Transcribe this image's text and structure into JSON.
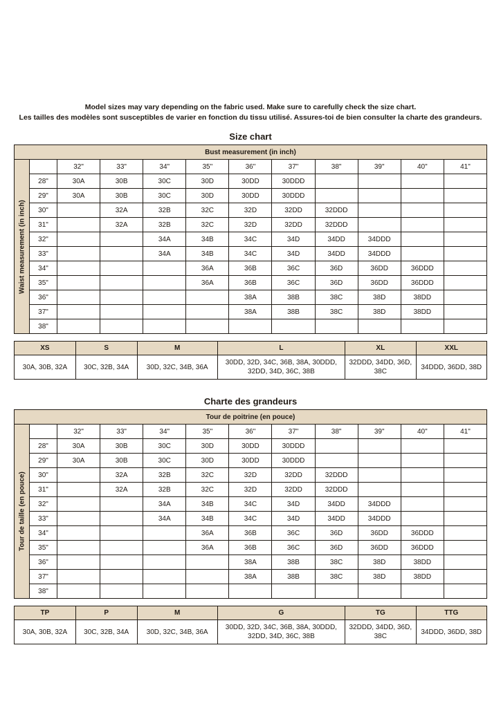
{
  "intro": {
    "line1": "Model sizes may vary depending on the fabric used. Make sure to carefully check the size chart.",
    "line2": "Les tailles des modèles sont susceptibles de varier en fonction du tissu utilisé. Assures-toi de bien consulter la charte des grandeurs."
  },
  "colors": {
    "band_bg": "#e6d9c3",
    "border": "#201a14",
    "text": "#201a14",
    "page_bg": "#ffffff"
  },
  "chart_en": {
    "title": "Size chart",
    "top_header": "Bust measurement (in inch)",
    "side_header": "Waist measurement (in inch)",
    "bust_cols": [
      "32\"",
      "33\"",
      "34\"",
      "35\"",
      "36\"",
      "37\"",
      "38\"",
      "39\"",
      "40\"",
      "41\""
    ],
    "rows": [
      {
        "h": "28\"",
        "c": [
          "30A",
          "30B",
          "30C",
          "30D",
          "30DD",
          "30DDD",
          "",
          "",
          "",
          ""
        ]
      },
      {
        "h": "29\"",
        "c": [
          "30A",
          "30B",
          "30C",
          "30D",
          "30DD",
          "30DDD",
          "",
          "",
          "",
          ""
        ]
      },
      {
        "h": "30\"",
        "c": [
          "",
          "32A",
          "32B",
          "32C",
          "32D",
          "32DD",
          "32DDD",
          "",
          "",
          ""
        ]
      },
      {
        "h": "31\"",
        "c": [
          "",
          "32A",
          "32B",
          "32C",
          "32D",
          "32DD",
          "32DDD",
          "",
          "",
          ""
        ]
      },
      {
        "h": "32\"",
        "c": [
          "",
          "",
          "34A",
          "34B",
          "34C",
          "34D",
          "34DD",
          "34DDD",
          "",
          ""
        ]
      },
      {
        "h": "33\"",
        "c": [
          "",
          "",
          "34A",
          "34B",
          "34C",
          "34D",
          "34DD",
          "34DDD",
          "",
          ""
        ]
      },
      {
        "h": "34\"",
        "c": [
          "",
          "",
          "",
          "36A",
          "36B",
          "36C",
          "36D",
          "36DD",
          "36DDD",
          ""
        ]
      },
      {
        "h": "35\"",
        "c": [
          "",
          "",
          "",
          "36A",
          "36B",
          "36C",
          "36D",
          "36DD",
          "36DDD",
          ""
        ]
      },
      {
        "h": "36\"",
        "c": [
          "",
          "",
          "",
          "",
          "38A",
          "38B",
          "38C",
          "38D",
          "38DD",
          ""
        ]
      },
      {
        "h": "37\"",
        "c": [
          "",
          "",
          "",
          "",
          "38A",
          "38B",
          "38C",
          "38D",
          "38DD",
          ""
        ]
      },
      {
        "h": "38\"",
        "c": [
          "",
          "",
          "",
          "",
          "",
          "",
          "",
          "",
          "",
          ""
        ]
      }
    ],
    "sizecat": {
      "headers": [
        "XS",
        "S",
        "M",
        "L",
        "XL",
        "XXL"
      ],
      "values": [
        "30A, 30B, 32A",
        "30C, 32B, 34A",
        "30D, 32C, 34B, 36A",
        "30DD, 32D, 34C, 36B, 38A, 30DDD, 32DD, 34D, 36C, 38B",
        "32DDD, 34DD, 36D, 38C",
        "34DDD, 36DD, 38D"
      ]
    }
  },
  "chart_fr": {
    "title": "Charte des grandeurs",
    "top_header": "Tour de poitrine (en pouce)",
    "side_header": "Tour de taille (en pouce)",
    "bust_cols": [
      "32\"",
      "33\"",
      "34\"",
      "35\"",
      "36\"",
      "37\"",
      "38\"",
      "39\"",
      "40\"",
      "41\""
    ],
    "rows": [
      {
        "h": "28\"",
        "c": [
          "30A",
          "30B",
          "30C",
          "30D",
          "30DD",
          "30DDD",
          "",
          "",
          "",
          ""
        ]
      },
      {
        "h": "29\"",
        "c": [
          "30A",
          "30B",
          "30C",
          "30D",
          "30DD",
          "30DDD",
          "",
          "",
          "",
          ""
        ]
      },
      {
        "h": "30\"",
        "c": [
          "",
          "32A",
          "32B",
          "32C",
          "32D",
          "32DD",
          "32DDD",
          "",
          "",
          ""
        ]
      },
      {
        "h": "31\"",
        "c": [
          "",
          "32A",
          "32B",
          "32C",
          "32D",
          "32DD",
          "32DDD",
          "",
          "",
          ""
        ]
      },
      {
        "h": "32\"",
        "c": [
          "",
          "",
          "34A",
          "34B",
          "34C",
          "34D",
          "34DD",
          "34DDD",
          "",
          ""
        ]
      },
      {
        "h": "33\"",
        "c": [
          "",
          "",
          "34A",
          "34B",
          "34C",
          "34D",
          "34DD",
          "34DDD",
          "",
          ""
        ]
      },
      {
        "h": "34\"",
        "c": [
          "",
          "",
          "",
          "36A",
          "36B",
          "36C",
          "36D",
          "36DD",
          "36DDD",
          ""
        ]
      },
      {
        "h": "35\"",
        "c": [
          "",
          "",
          "",
          "36A",
          "36B",
          "36C",
          "36D",
          "36DD",
          "36DDD",
          ""
        ]
      },
      {
        "h": "36\"",
        "c": [
          "",
          "",
          "",
          "",
          "38A",
          "38B",
          "38C",
          "38D",
          "38DD",
          ""
        ]
      },
      {
        "h": "37\"",
        "c": [
          "",
          "",
          "",
          "",
          "38A",
          "38B",
          "38C",
          "38D",
          "38DD",
          ""
        ]
      },
      {
        "h": "38\"",
        "c": [
          "",
          "",
          "",
          "",
          "",
          "",
          "",
          "",
          "",
          ""
        ]
      }
    ],
    "sizecat": {
      "headers": [
        "TP",
        "P",
        "M",
        "G",
        "TG",
        "TTG"
      ],
      "values": [
        "30A, 30B, 32A",
        "30C, 32B, 34A",
        "30D, 32C, 34B, 36A",
        "30DD, 32D, 34C, 36B, 38A, 30DDD, 32DD, 34D, 36C, 38B",
        "32DDD, 34DD, 36D, 38C",
        "34DDD, 36DD, 38D"
      ]
    }
  },
  "sizecat_colwidths_pct": [
    13,
    13,
    17,
    27,
    15,
    15
  ]
}
